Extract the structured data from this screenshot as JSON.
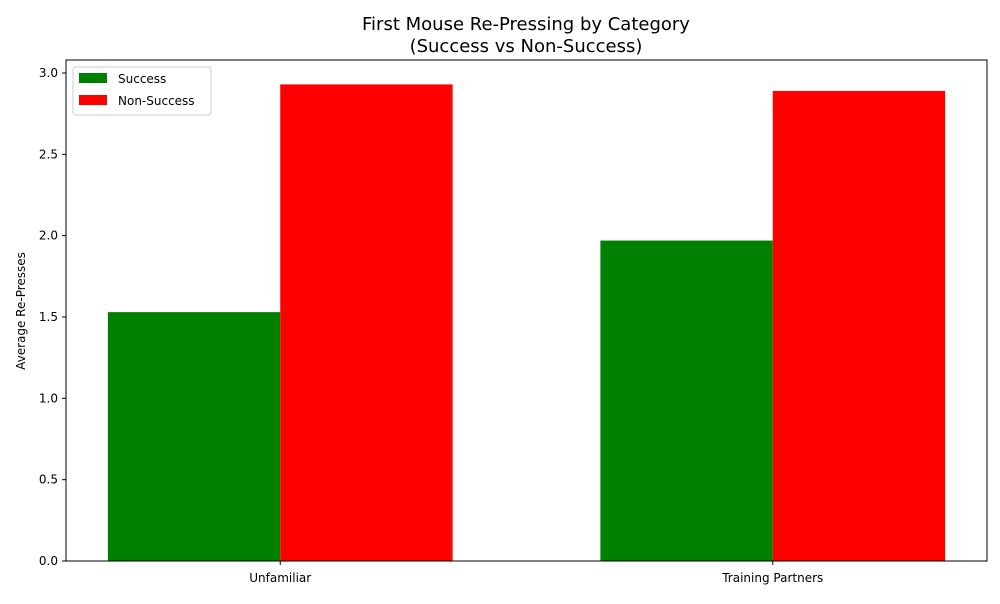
{
  "chart_data": {
    "type": "bar",
    "title": "First Mouse Re-Pressing by Category\n(Success vs Non-Success)",
    "title_lines": [
      "First Mouse Re-Pressing by Category",
      "(Success vs Non-Success)"
    ],
    "xlabel": "",
    "ylabel": "Average Re-Presses",
    "categories": [
      "Unfamiliar",
      "Training Partners"
    ],
    "series": [
      {
        "name": "Success",
        "color": "#008000",
        "values": [
          1.53,
          1.97
        ]
      },
      {
        "name": "Non-Success",
        "color": "#ff0000",
        "values": [
          2.93,
          2.89
        ]
      }
    ],
    "ylim": [
      0,
      3.08
    ],
    "yticks": [
      0.0,
      0.5,
      1.0,
      1.5,
      2.0,
      2.5,
      3.0
    ],
    "ytick_labels": [
      "0.0",
      "0.5",
      "1.0",
      "1.5",
      "2.0",
      "2.5",
      "3.0"
    ],
    "grid": false,
    "legend_position": "top-left"
  }
}
